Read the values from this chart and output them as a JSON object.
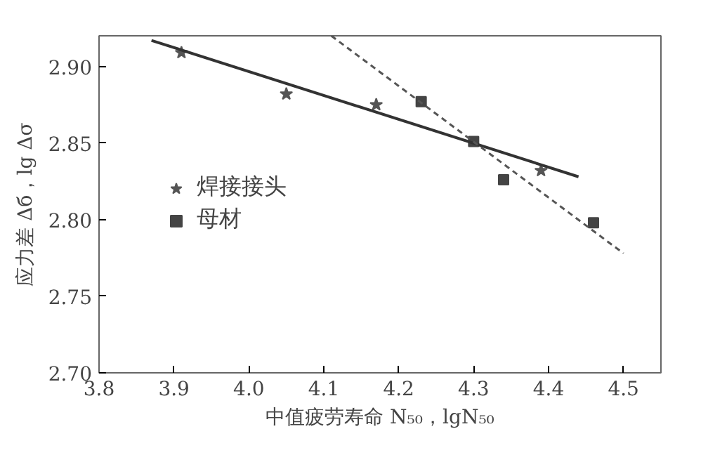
{
  "chart_data": {
    "type": "scatter",
    "xlabel": "中值疲劳寿命 N₅₀，lgN₅₀",
    "ylabel": "应力差 Δб，lg Δσ",
    "xlim": [
      3.8,
      4.55
    ],
    "ylim": [
      2.7,
      2.92
    ],
    "xticks": [
      3.8,
      3.9,
      {
        "value": 4.0,
        "label": "4.0"
      },
      4.1,
      4.2,
      4.3,
      4.4,
      4.5
    ],
    "yticks": [
      {
        "value": 2.7,
        "label": "2.70"
      },
      {
        "value": 2.75,
        "label": "2.75"
      },
      {
        "value": 2.8,
        "label": "2.80"
      },
      {
        "value": 2.85,
        "label": "2.85"
      },
      {
        "value": 2.9,
        "label": "2.90"
      }
    ],
    "grid": false,
    "legend": "left",
    "series": [
      {
        "name": "焊接接头",
        "marker": "star",
        "color": "#555555",
        "x": [
          3.91,
          4.05,
          4.17,
          4.3,
          4.39
        ],
        "values": [
          2.909,
          2.882,
          2.875,
          null,
          2.832
        ]
      },
      {
        "name": "母材",
        "marker": "square",
        "color": "#444444",
        "x": [
          4.23,
          4.3,
          4.34,
          4.46
        ],
        "values": [
          2.877,
          2.851,
          2.826,
          2.798
        ]
      },
      {
        "type": "line",
        "line_style": "solid",
        "color": "#333333",
        "x": [
          3.87,
          4.44
        ],
        "values": [
          2.917,
          2.828
        ]
      },
      {
        "type": "line",
        "line_style": "dashed",
        "color": "#555555",
        "x": [
          4.11,
          4.5
        ],
        "values": [
          2.92,
          2.778
        ]
      }
    ]
  }
}
